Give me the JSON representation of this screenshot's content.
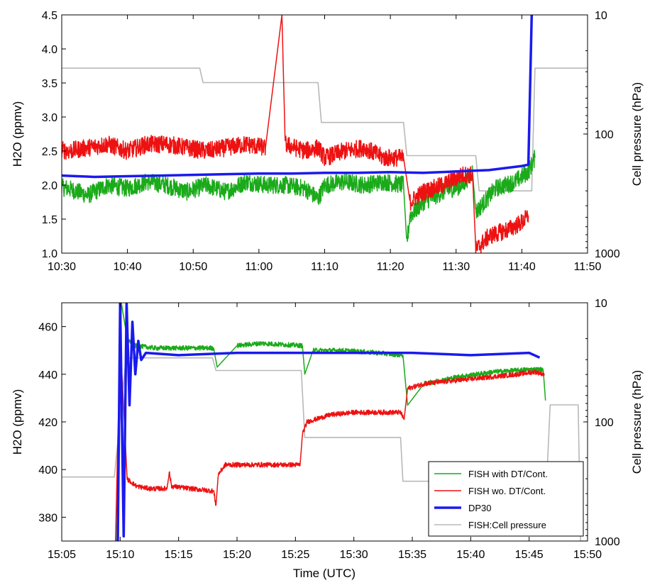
{
  "chart_data": [
    {
      "type": "line",
      "xlabel": "",
      "ylabel": "H2O (ppmv)",
      "y2label": "Cell pressure (hPa)",
      "x_domain_min": [
        630,
        710
      ],
      "x_ticks": [
        "10:30",
        "10:40",
        "10:50",
        "11:00",
        "11:10",
        "11:20",
        "11:30",
        "11:40",
        "11:50"
      ],
      "x_tick_min": [
        630,
        640,
        650,
        660,
        670,
        680,
        690,
        700,
        710
      ],
      "ylim": [
        1.0,
        4.5
      ],
      "y_ticks": [
        "1.0",
        "1.5",
        "2.0",
        "2.5",
        "3.0",
        "3.5",
        "4.0",
        "4.5"
      ],
      "y_tick_values": [
        1.0,
        1.5,
        2.0,
        2.5,
        3.0,
        3.5,
        4.0,
        4.5
      ],
      "y2_scale": "log",
      "y2lim": [
        10,
        1000
      ],
      "y2_ticks": [
        "10",
        "100",
        "1000"
      ],
      "y2_tick_values": [
        10,
        100,
        1000
      ],
      "grid": false,
      "series": [
        {
          "name": "FISH with DT/Cont.",
          "color": "#1aaa1a",
          "axis": "left",
          "x": [
            625,
            628,
            631,
            634,
            637,
            640,
            643,
            646,
            649,
            652,
            655,
            658,
            661,
            664,
            667,
            669,
            670,
            673,
            676,
            679,
            682,
            682.5,
            683,
            685,
            688,
            691,
            692.5,
            693,
            696,
            699,
            701,
            702
          ],
          "y": [
            1.9,
            2.0,
            1.95,
            1.85,
            2.0,
            1.95,
            2.05,
            2.0,
            1.9,
            2.0,
            1.9,
            2.05,
            2.0,
            2.0,
            1.95,
            1.8,
            2.0,
            2.05,
            2.0,
            2.05,
            2.0,
            1.15,
            1.55,
            1.75,
            1.9,
            2.0,
            2.2,
            1.6,
            1.95,
            2.05,
            2.2,
            2.4
          ]
        },
        {
          "name": "FISH wo. DT/Cont.",
          "color": "#ee1111",
          "axis": "left",
          "x": [
            625,
            628,
            631,
            634,
            637,
            640,
            643,
            646,
            649,
            652,
            655,
            658,
            661,
            663.5,
            664,
            667,
            669,
            670,
            673,
            676,
            679,
            682,
            683,
            685,
            688,
            691,
            692.5,
            693,
            695,
            698,
            700,
            701
          ],
          "y": [
            2.45,
            2.55,
            2.5,
            2.55,
            2.6,
            2.5,
            2.6,
            2.6,
            2.55,
            2.5,
            2.55,
            2.6,
            2.55,
            4.5,
            2.6,
            2.5,
            2.55,
            2.4,
            2.5,
            2.55,
            2.4,
            2.4,
            1.75,
            1.9,
            2.0,
            2.15,
            2.15,
            1.05,
            1.25,
            1.35,
            1.45,
            1.55
          ]
        },
        {
          "name": "DP30",
          "color": "#1a1aee",
          "axis": "left",
          "x": [
            625,
            630,
            635,
            640,
            645,
            650,
            655,
            660,
            665,
            670,
            675,
            680,
            685,
            690,
            695,
            700,
            701,
            701.5
          ],
          "y": [
            2.12,
            2.14,
            2.12,
            2.13,
            2.14,
            2.15,
            2.16,
            2.17,
            2.17,
            2.18,
            2.18,
            2.19,
            2.18,
            2.2,
            2.22,
            2.28,
            2.3,
            4.5
          ]
        },
        {
          "name": "FISH:Cell pressure",
          "color": "#b8b8b8",
          "axis": "right",
          "x": [
            625,
            651,
            651.5,
            669,
            669.5,
            682,
            682.5,
            693,
            693.5,
            701.5,
            702,
            710
          ],
          "y": [
            28,
            28,
            37,
            37,
            80,
            80,
            152,
            152,
            300,
            300,
            28,
            28
          ]
        }
      ]
    },
    {
      "type": "line",
      "xlabel": "Time (UTC)",
      "ylabel": "H2O (ppmv)",
      "y2label": "Cell pressure (hPa)",
      "x_domain_min": [
        905,
        950
      ],
      "x_ticks": [
        "15:05",
        "15:10",
        "15:15",
        "15:20",
        "15:25",
        "15:30",
        "15:35",
        "15:40",
        "15:45",
        "15:50"
      ],
      "x_tick_min": [
        905,
        910,
        915,
        920,
        925,
        930,
        935,
        940,
        945,
        950
      ],
      "ylim": [
        370,
        470
      ],
      "y_ticks": [
        "380",
        "400",
        "420",
        "440",
        "460"
      ],
      "y_tick_values": [
        380,
        400,
        420,
        440,
        460
      ],
      "y2_scale": "log",
      "y2lim": [
        10,
        1000
      ],
      "y2_ticks": [
        "10",
        "100",
        "1000"
      ],
      "y2_tick_values": [
        10,
        100,
        1000
      ],
      "grid": false,
      "legend": "bottom-right",
      "series": [
        {
          "name": "FISH with DT/Cont.",
          "color": "#1aaa1a",
          "axis": "left",
          "x": [
            909.7,
            910.1,
            910.6,
            911.2,
            913,
            915,
            918,
            918.3,
            920,
            922,
            925.6,
            925.8,
            926.5,
            929,
            932,
            934.2,
            934.6,
            936,
            939,
            942,
            945,
            946.2,
            946.4
          ],
          "y": [
            370,
            470,
            455,
            452,
            451,
            451,
            451,
            443,
            452,
            453,
            452,
            440,
            450,
            450,
            449,
            448,
            427,
            436,
            439,
            441,
            442,
            442,
            429
          ]
        },
        {
          "name": "FISH wo. DT/Cont.",
          "color": "#ee1111",
          "axis": "left",
          "x": [
            909.6,
            910.0,
            910.6,
            911.4,
            912.5,
            914.0,
            914.2,
            914.4,
            916,
            918,
            918.2,
            918.4,
            919,
            922,
            925.4,
            925.6,
            926,
            928,
            930,
            932,
            934.0,
            934.3,
            934.6,
            936,
            938,
            940,
            942,
            944,
            945.5,
            946.3
          ],
          "y": [
            370,
            455,
            396,
            393,
            392,
            392,
            399,
            393,
            392,
            391,
            385,
            398,
            402,
            402,
            402,
            415,
            420,
            423,
            424,
            424,
            424,
            421,
            434,
            436,
            437,
            438,
            439,
            440,
            441,
            440
          ]
        },
        {
          "name": "DP30",
          "color": "#1a1aee",
          "axis": "left",
          "x": [
            909.8,
            910.0,
            910.3,
            910.55,
            910.8,
            911.05,
            911.3,
            911.55,
            911.8,
            912.2,
            915,
            920,
            925,
            930,
            935,
            940,
            945,
            945.9
          ],
          "y": [
            370,
            470,
            372,
            470,
            427,
            462,
            440,
            454,
            446,
            449,
            448,
            449,
            449,
            449,
            449,
            448,
            449,
            447
          ]
        },
        {
          "name": "FISH:Cell pressure",
          "color": "#b8b8b8",
          "axis": "right",
          "x": [
            905,
            909.5,
            910.5,
            917.9,
            918.2,
            925.5,
            925.8,
            934.0,
            934.2,
            946.5,
            946.8,
            949.2,
            949.4,
            950
          ],
          "y": [
            290,
            290,
            29,
            29,
            37,
            37,
            135,
            135,
            315,
            315,
            72,
            72,
            1000,
            1000
          ]
        }
      ]
    }
  ]
}
